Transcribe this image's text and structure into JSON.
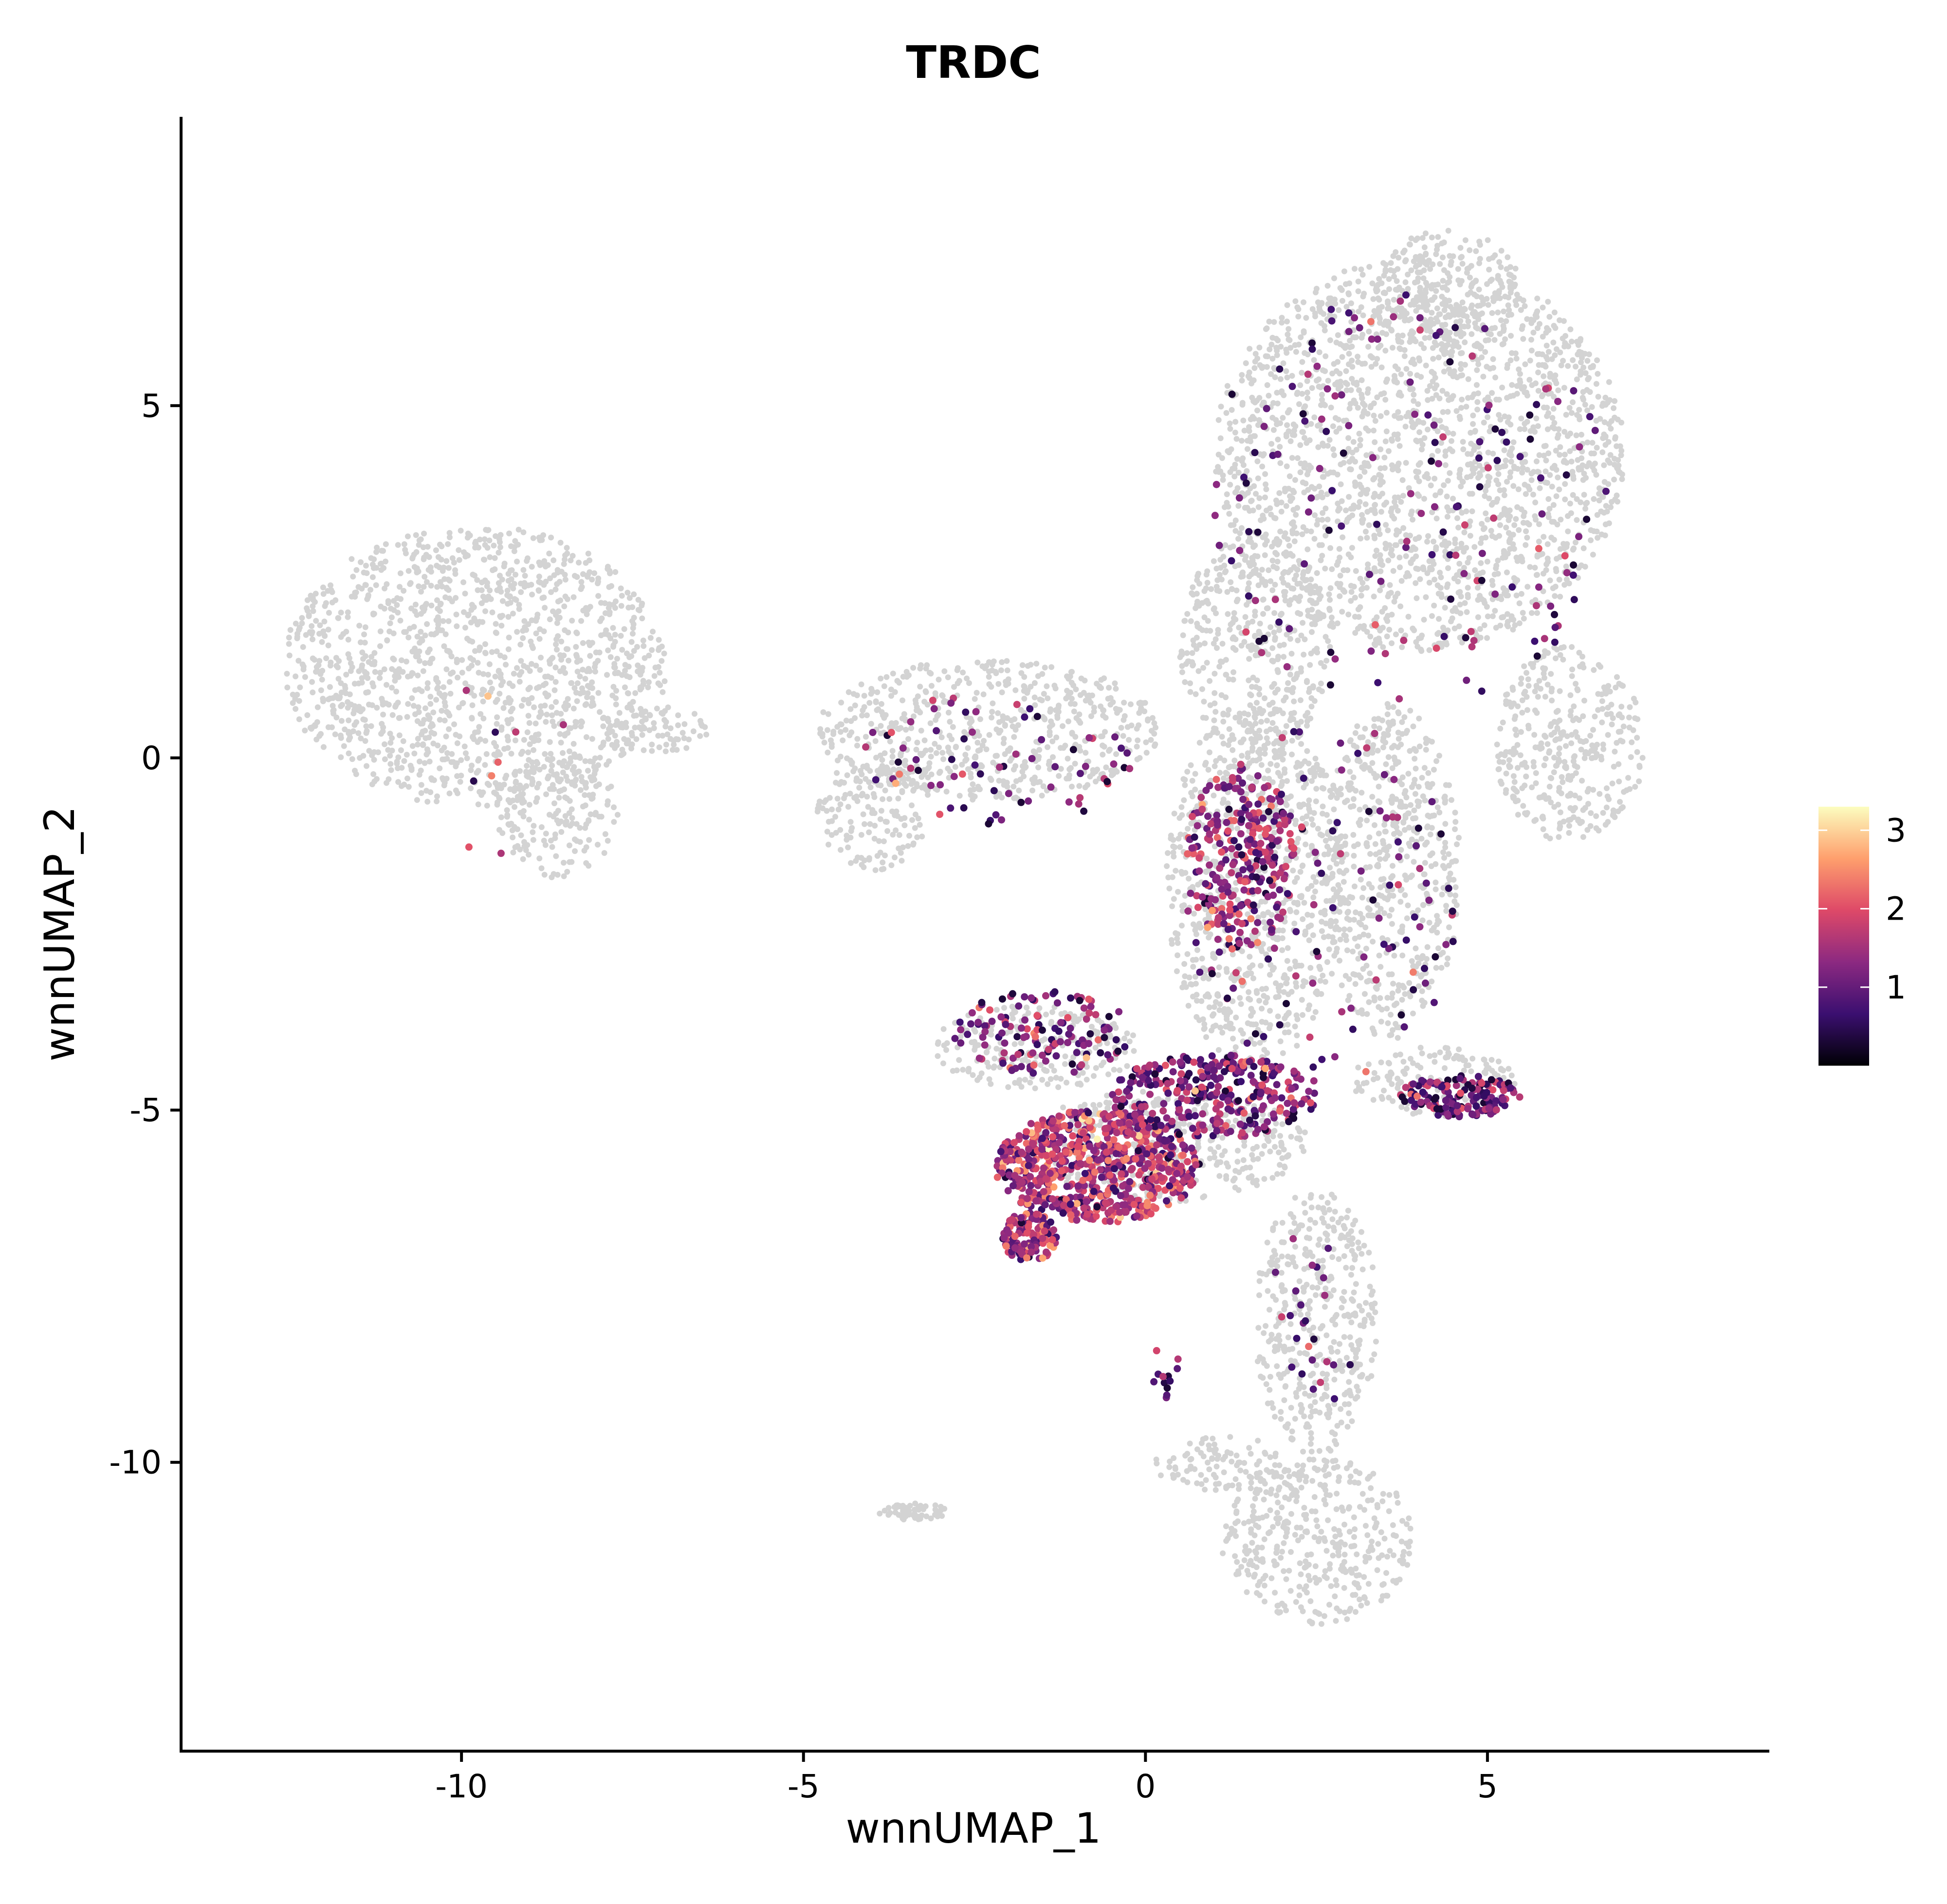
{
  "chart_data": {
    "type": "scatter",
    "title": "TRDC",
    "xlabel": "wnnUMAP_1",
    "ylabel": "wnnUMAP_2",
    "xlim": [
      -14.1,
      9.1
    ],
    "ylim": [
      -14.1,
      9.1
    ],
    "x_ticks": [
      -10,
      -5,
      0,
      5
    ],
    "x_tick_labels": [
      "-10",
      "-5",
      "0",
      "5"
    ],
    "y_ticks": [
      -10,
      -5,
      0,
      5
    ],
    "y_tick_labels": [
      "-10",
      "-5",
      "0",
      "5"
    ],
    "grid": false,
    "legend_position": "right",
    "colorbar": {
      "min": 0,
      "max": 3.3,
      "ticks": [
        1,
        2,
        3
      ],
      "tick_labels": [
        "1",
        "2",
        "3"
      ],
      "colors": [
        "#000004",
        "#3b0f70",
        "#8c2981",
        "#de4968",
        "#fe9f6d",
        "#fcfdbf"
      ]
    },
    "background_color": "#d3d3d3",
    "background_regions": [
      {
        "name": "left cluster",
        "cx": -9.8,
        "cy": 1.3,
        "rx": 2.8,
        "ry": 2.0
      },
      {
        "name": "left cluster tail",
        "cx": -8.6,
        "cy": -0.8,
        "rx": 0.9,
        "ry": 0.9
      },
      {
        "name": "left streak",
        "cx": -7.2,
        "cy": 0.4,
        "rx": 0.9,
        "ry": 0.35
      },
      {
        "name": "upper right cluster",
        "cx": 4.0,
        "cy": 4.3,
        "rx": 3.0,
        "ry": 2.8
      },
      {
        "name": "upper right crest",
        "cx": 4.4,
        "cy": 6.6,
        "rx": 1.1,
        "ry": 0.9
      },
      {
        "name": "right lobe",
        "cx": 6.2,
        "cy": 0.2,
        "rx": 1.1,
        "ry": 1.4
      },
      {
        "name": "middle arm",
        "cx": -2.3,
        "cy": 0.4,
        "rx": 2.5,
        "ry": 1.0
      },
      {
        "name": "middle arm end",
        "cx": -4.0,
        "cy": -0.8,
        "rx": 0.8,
        "ry": 0.8
      },
      {
        "name": "central column",
        "cx": 1.6,
        "cy": -1.8,
        "rx": 1.3,
        "ry": 2.6
      },
      {
        "name": "central column upper",
        "cx": 1.6,
        "cy": 1.6,
        "rx": 1.1,
        "ry": 1.6
      },
      {
        "name": "right column",
        "cx": 3.6,
        "cy": -1.6,
        "rx": 1.0,
        "ry": 2.4
      },
      {
        "name": "lower arm",
        "cx": -1.6,
        "cy": -4.1,
        "rx": 1.5,
        "ry": 0.6
      },
      {
        "name": "diagonal band",
        "cx": 0.3,
        "cy": -5.5,
        "rx": 2.1,
        "ry": 0.8
      },
      {
        "name": "right band",
        "cx": 4.2,
        "cy": -4.6,
        "rx": 1.2,
        "ry": 0.5
      },
      {
        "name": "descending stem",
        "cx": 2.5,
        "cy": -8.0,
        "rx": 0.9,
        "ry": 1.9
      },
      {
        "name": "bottom blob",
        "cx": 2.5,
        "cy": -11.1,
        "rx": 1.4,
        "ry": 1.2
      },
      {
        "name": "bottom blob left",
        "cx": 1.1,
        "cy": -10.0,
        "rx": 1.0,
        "ry": 0.4
      },
      {
        "name": "small island",
        "cx": -3.4,
        "cy": -10.7,
        "rx": 0.5,
        "ry": 0.12
      }
    ],
    "expression_regions": [
      {
        "name": "dense lower cluster",
        "cx": -0.7,
        "cy": -5.8,
        "rx": 1.5,
        "ry": 0.8,
        "points": 700,
        "mean_level": 1.6
      },
      {
        "name": "lower cluster tip",
        "cx": -1.7,
        "cy": -6.8,
        "rx": 0.4,
        "ry": 0.35,
        "points": 120,
        "mean_level": 1.5
      },
      {
        "name": "diagonal streak",
        "cx": 1.0,
        "cy": -4.8,
        "rx": 1.5,
        "ry": 0.6,
        "points": 320,
        "mean_level": 1.2
      },
      {
        "name": "central cluster",
        "cx": 1.4,
        "cy": -1.4,
        "rx": 0.8,
        "ry": 1.3,
        "points": 260,
        "mean_level": 1.4
      },
      {
        "name": "right band",
        "cx": 4.6,
        "cy": -4.8,
        "rx": 0.9,
        "ry": 0.3,
        "points": 150,
        "mean_level": 1.0
      },
      {
        "name": "lower arm",
        "cx": -1.5,
        "cy": -3.9,
        "rx": 1.3,
        "ry": 0.6,
        "points": 130,
        "mean_level": 1.1
      },
      {
        "name": "upper right scatter",
        "cx": 3.8,
        "cy": 3.6,
        "rx": 3.0,
        "ry": 3.0,
        "points": 160,
        "mean_level": 1.0
      },
      {
        "name": "middle arm scatter",
        "cx": -2.2,
        "cy": 0.0,
        "rx": 2.0,
        "ry": 1.0,
        "points": 70,
        "mean_level": 1.1
      },
      {
        "name": "central column scatter",
        "cx": 2.6,
        "cy": -2.0,
        "rx": 2.0,
        "ry": 2.6,
        "points": 120,
        "mean_level": 1.0
      },
      {
        "name": "stem scatter",
        "cx": 2.4,
        "cy": -8.0,
        "rx": 0.7,
        "ry": 1.3,
        "points": 25,
        "mean_level": 1.0
      },
      {
        "name": "left cluster scatter",
        "cx": -9.8,
        "cy": -0.2,
        "rx": 1.6,
        "ry": 1.2,
        "points": 10,
        "mean_level": 1.1
      },
      {
        "name": "small streak",
        "cx": 0.3,
        "cy": -8.7,
        "rx": 0.2,
        "ry": 0.4,
        "points": 12,
        "mean_level": 1.0
      }
    ]
  }
}
